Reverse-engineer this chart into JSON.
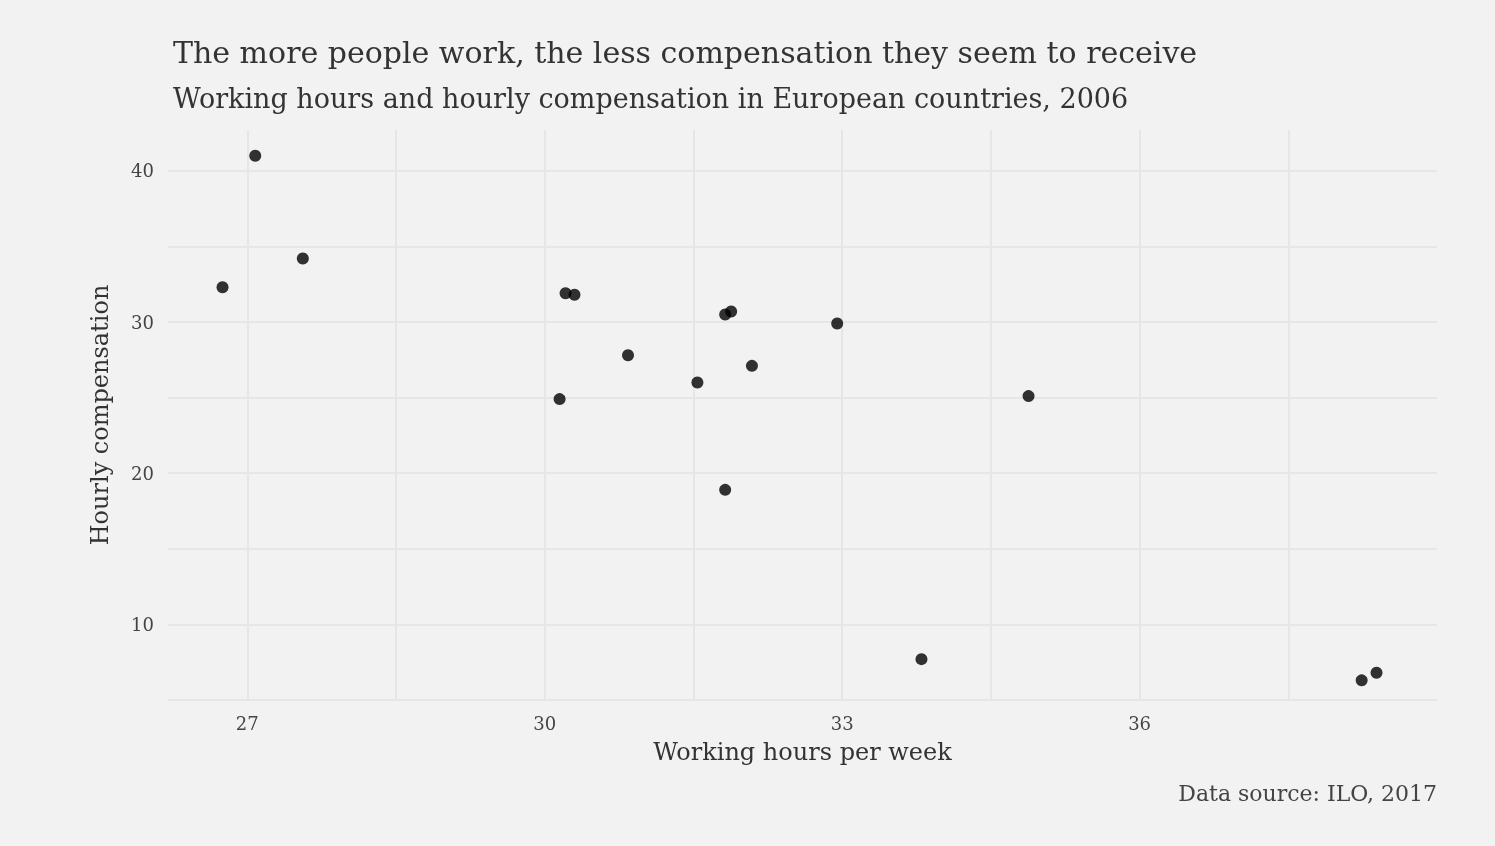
{
  "chart_data": {
    "type": "scatter",
    "title": "The more people work, the less compensation they seem to receive",
    "subtitle": "Working hours and hourly compensation in European countries, 2006",
    "xlabel": "Working hours per week",
    "ylabel": "Hourly compensation",
    "annotations": [
      "Data source: ILO, 2017"
    ],
    "x": [
      27.08,
      27.56,
      26.75,
      30.21,
      30.3,
      30.84,
      30.15,
      31.54,
      31.82,
      31.88,
      32.09,
      31.82,
      32.95,
      34.88,
      33.8,
      38.24,
      38.39
    ],
    "values": [
      41.0,
      34.2,
      32.3,
      31.9,
      31.8,
      27.8,
      24.9,
      26.0,
      30.5,
      30.7,
      27.1,
      18.9,
      29.9,
      25.1,
      7.7,
      6.3,
      6.8
    ],
    "color": "#000000",
    "marker": "circle",
    "grid": true,
    "xlim": [
      26.2,
      39.0
    ],
    "ylim": [
      5,
      42.7
    ],
    "xticks": [
      27,
      {
        "value": 28.5,
        "label": null
      },
      30,
      {
        "value": 31.5,
        "label": null
      },
      33,
      {
        "value": 34.5,
        "label": null
      },
      36,
      {
        "value": 37.5,
        "label": null
      }
    ],
    "yticks": [
      {
        "value": 5,
        "label": null
      },
      10,
      {
        "value": 15,
        "label": null
      },
      20,
      {
        "value": 25,
        "label": null
      },
      30,
      {
        "value": 35,
        "label": null
      },
      40
    ]
  }
}
